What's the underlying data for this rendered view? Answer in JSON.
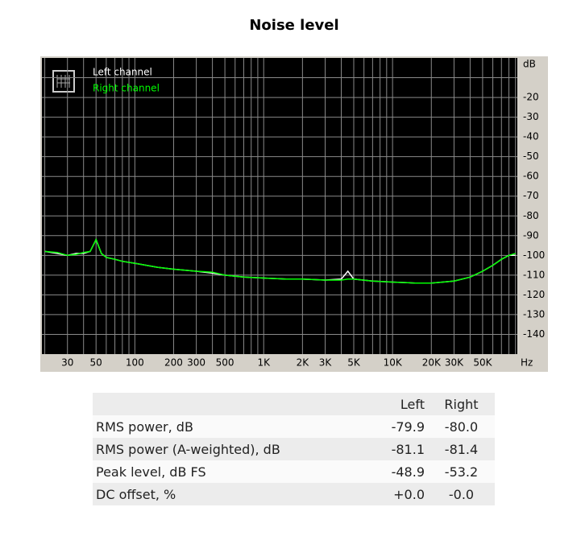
{
  "chart_data": {
    "type": "line",
    "title": "Noise level",
    "x_label": "Hz",
    "y_label": "dB",
    "log_x": true,
    "grid": true,
    "legend": "upper left",
    "x": [
      20,
      25,
      30,
      35,
      40,
      45,
      50,
      55,
      60,
      70,
      80,
      100,
      150,
      200,
      300,
      400,
      500,
      700,
      1000,
      1500,
      2000,
      3000,
      4000,
      4500,
      5000,
      7000,
      10000,
      15000,
      20000,
      30000,
      40000,
      50000,
      60000,
      70000,
      80000,
      90000
    ],
    "series": [
      {
        "name": "Left channel",
        "color": "#ffffff",
        "values": [
          -98,
          -99,
          -100,
          -99,
          -99,
          -98,
          -92,
          -99,
          -101,
          -102,
          -103,
          -104,
          -106,
          -107,
          -108,
          -109,
          -110,
          -111,
          -111.5,
          -112,
          -112,
          -112.5,
          -112,
          -108,
          -112,
          -113,
          -113.5,
          -114,
          -114,
          -113,
          -111,
          -108,
          -105,
          -102,
          -100,
          -100
        ]
      },
      {
        "name": "Right channel",
        "color": "#00ff00",
        "values": [
          -98,
          -98.5,
          -100,
          -99.5,
          -98.5,
          -98,
          -92,
          -99,
          -101,
          -102,
          -103,
          -104,
          -106,
          -107,
          -108,
          -108.5,
          -110,
          -111,
          -111.5,
          -112,
          -112,
          -112.5,
          -112.5,
          -112,
          -112,
          -113,
          -113.5,
          -114,
          -114,
          -113,
          -111,
          -108,
          -105,
          -102,
          -100,
          -99
        ]
      }
    ],
    "xlim": [
      19,
      93000
    ],
    "ylim": [
      -150,
      0
    ],
    "xticks": [
      30,
      50,
      100,
      200,
      300,
      500,
      {
        "value": 1000,
        "label": "1K"
      },
      {
        "value": 2000,
        "label": "2K"
      },
      {
        "value": 3000,
        "label": "3K"
      },
      {
        "value": 5000,
        "label": "5K"
      },
      {
        "value": 10000,
        "label": "10K"
      },
      {
        "value": 20000,
        "label": "20K"
      },
      {
        "value": 30000,
        "label": "30K"
      },
      {
        "value": 50000,
        "label": "50K"
      }
    ],
    "x_minor_gridlines": [
      20,
      40,
      60,
      70,
      80,
      90,
      400,
      600,
      700,
      800,
      900,
      4000,
      6000,
      7000,
      8000,
      9000,
      40000,
      60000,
      70000,
      80000,
      90000
    ],
    "yticks": [
      -20,
      -30,
      -40,
      -50,
      -60,
      -70,
      -80,
      -90,
      -100,
      -110,
      -120,
      -130,
      -140
    ],
    "y_minor_gridlines": [
      -10
    ]
  },
  "table": {
    "header": [
      "Left",
      "Right"
    ],
    "rows": [
      [
        "RMS power, dB",
        "-79.9",
        "-80.0"
      ],
      [
        "RMS power (A-weighted), dB",
        "-81.1",
        "-81.4"
      ],
      [
        "Peak level, dB FS",
        "-48.9",
        "-53.2"
      ],
      [
        "DC offset, %",
        "+0.0",
        "-0.0"
      ]
    ]
  }
}
